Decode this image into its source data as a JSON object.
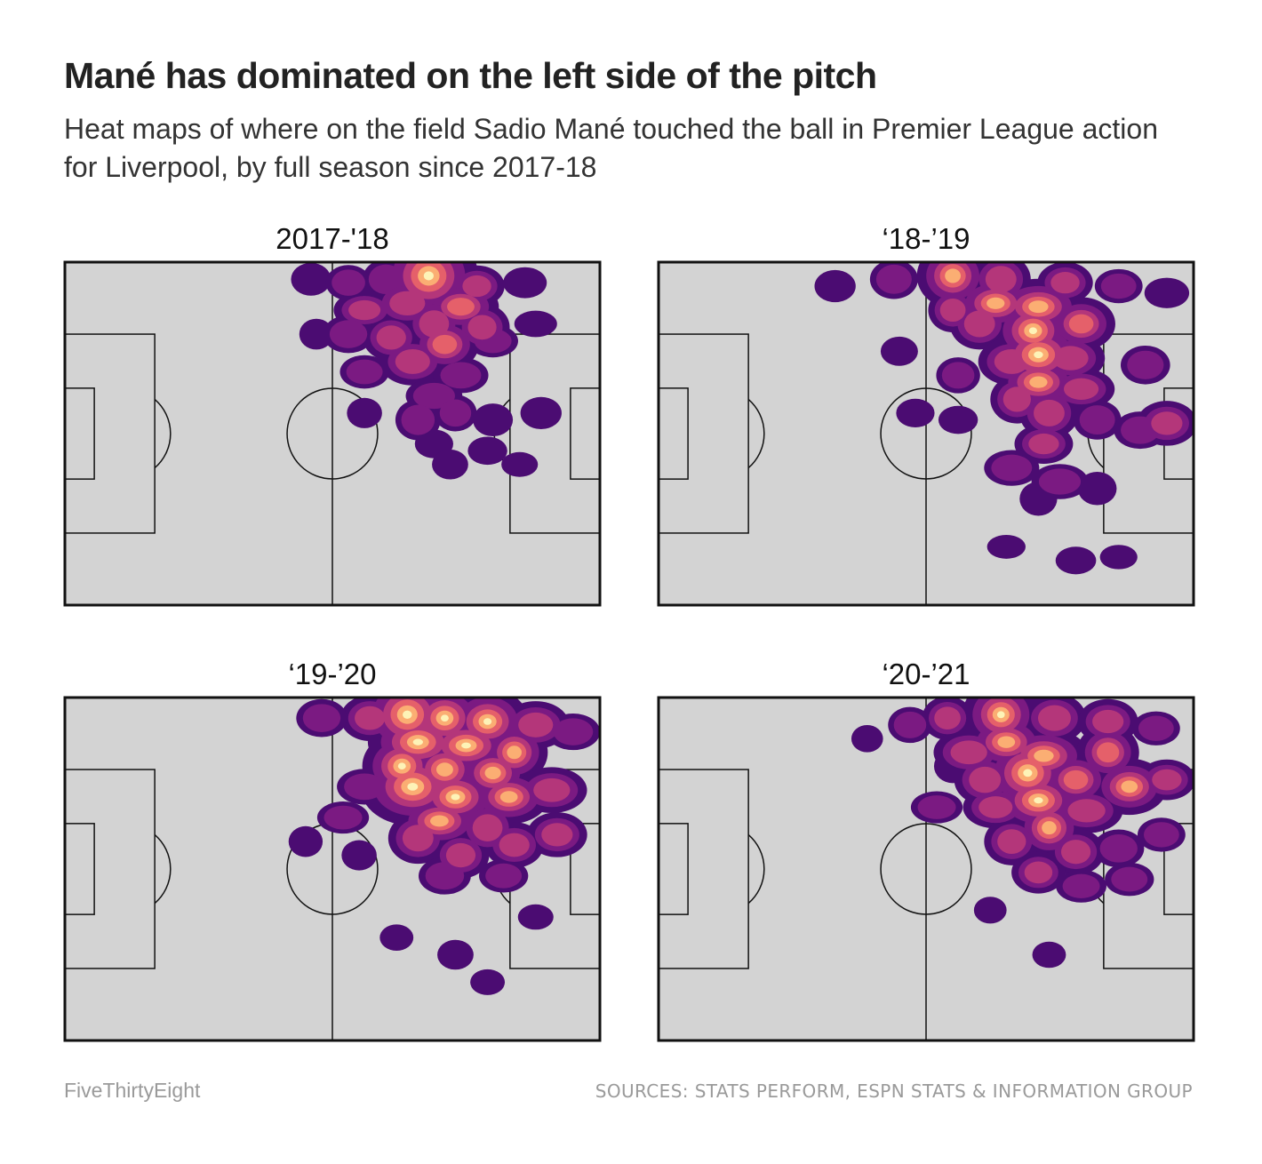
{
  "header": {
    "title": "Mané has dominated on the left side of the pitch",
    "subtitle": "Heat maps of where on the field Sadio Mané touched the ball in Premier League action for Liverpool, by full season since 2017-18"
  },
  "footer": {
    "brand": "FiveThirtyEight",
    "sources": "SOURCES: STATS PERFORM, ESPN STATS & INFORMATION GROUP"
  },
  "colors": {
    "pitch": "#d3d3d3",
    "lines": "#111111",
    "heat_low": "#4b0c72",
    "heat_mid_low": "#7b1a82",
    "heat_mid": "#b4367a",
    "heat_mid_high": "#e5606a",
    "heat_high": "#fbae73",
    "heat_peak": "#fdf3b7"
  },
  "chart_data": [
    {
      "type": "heatmap",
      "title": "2017-'18",
      "x_range": [
        0,
        100
      ],
      "y_range": [
        0,
        100
      ],
      "hotspots": [
        {
          "x": 68,
          "y": 4,
          "intensity": 1.0
        },
        {
          "x": 60,
          "y": 5,
          "intensity": 0.45
        },
        {
          "x": 46,
          "y": 5,
          "intensity": 0.35
        },
        {
          "x": 53,
          "y": 6,
          "intensity": 0.4
        },
        {
          "x": 77,
          "y": 7,
          "intensity": 0.5
        },
        {
          "x": 86,
          "y": 6,
          "intensity": 0.35
        },
        {
          "x": 64,
          "y": 12,
          "intensity": 0.6
        },
        {
          "x": 74,
          "y": 13,
          "intensity": 0.65
        },
        {
          "x": 56,
          "y": 14,
          "intensity": 0.5
        },
        {
          "x": 69,
          "y": 18,
          "intensity": 0.6
        },
        {
          "x": 78,
          "y": 19,
          "intensity": 0.55
        },
        {
          "x": 61,
          "y": 22,
          "intensity": 0.55
        },
        {
          "x": 71,
          "y": 24,
          "intensity": 0.65
        },
        {
          "x": 53,
          "y": 21,
          "intensity": 0.45
        },
        {
          "x": 65,
          "y": 29,
          "intensity": 0.6
        },
        {
          "x": 56,
          "y": 32,
          "intensity": 0.4
        },
        {
          "x": 74,
          "y": 33,
          "intensity": 0.45
        },
        {
          "x": 69,
          "y": 39,
          "intensity": 0.45
        },
        {
          "x": 66,
          "y": 46,
          "intensity": 0.45
        },
        {
          "x": 73,
          "y": 44,
          "intensity": 0.4
        },
        {
          "x": 80,
          "y": 46,
          "intensity": 0.35
        },
        {
          "x": 89,
          "y": 44,
          "intensity": 0.35
        },
        {
          "x": 69,
          "y": 53,
          "intensity": 0.3
        },
        {
          "x": 79,
          "y": 55,
          "intensity": 0.3
        },
        {
          "x": 85,
          "y": 59,
          "intensity": 0.25
        },
        {
          "x": 80,
          "y": 23,
          "intensity": 0.4
        },
        {
          "x": 88,
          "y": 18,
          "intensity": 0.3
        },
        {
          "x": 47,
          "y": 21,
          "intensity": 0.3
        },
        {
          "x": 56,
          "y": 44,
          "intensity": 0.3
        },
        {
          "x": 72,
          "y": 59,
          "intensity": 0.3
        }
      ]
    },
    {
      "type": "heatmap",
      "title": "‘18-’19",
      "x_range": [
        0,
        100
      ],
      "y_range": [
        0,
        100
      ],
      "hotspots": [
        {
          "x": 55,
          "y": 4,
          "intensity": 0.75
        },
        {
          "x": 64,
          "y": 5,
          "intensity": 0.6
        },
        {
          "x": 44,
          "y": 5,
          "intensity": 0.45
        },
        {
          "x": 33,
          "y": 7,
          "intensity": 0.35
        },
        {
          "x": 76,
          "y": 6,
          "intensity": 0.5
        },
        {
          "x": 86,
          "y": 7,
          "intensity": 0.4
        },
        {
          "x": 95,
          "y": 9,
          "intensity": 0.35
        },
        {
          "x": 63,
          "y": 12,
          "intensity": 0.7
        },
        {
          "x": 71,
          "y": 13,
          "intensity": 0.75
        },
        {
          "x": 55,
          "y": 14,
          "intensity": 0.5
        },
        {
          "x": 60,
          "y": 18,
          "intensity": 0.6
        },
        {
          "x": 70,
          "y": 20,
          "intensity": 0.8
        },
        {
          "x": 79,
          "y": 18,
          "intensity": 0.65
        },
        {
          "x": 71,
          "y": 27,
          "intensity": 0.85
        },
        {
          "x": 66,
          "y": 29,
          "intensity": 0.6
        },
        {
          "x": 77,
          "y": 28,
          "intensity": 0.6
        },
        {
          "x": 71,
          "y": 35,
          "intensity": 0.7
        },
        {
          "x": 79,
          "y": 37,
          "intensity": 0.55
        },
        {
          "x": 67,
          "y": 40,
          "intensity": 0.55
        },
        {
          "x": 73,
          "y": 44,
          "intensity": 0.6
        },
        {
          "x": 82,
          "y": 46,
          "intensity": 0.45
        },
        {
          "x": 91,
          "y": 30,
          "intensity": 0.45
        },
        {
          "x": 95,
          "y": 47,
          "intensity": 0.55
        },
        {
          "x": 90,
          "y": 49,
          "intensity": 0.45
        },
        {
          "x": 72,
          "y": 53,
          "intensity": 0.5
        },
        {
          "x": 66,
          "y": 60,
          "intensity": 0.45
        },
        {
          "x": 75,
          "y": 64,
          "intensity": 0.45
        },
        {
          "x": 71,
          "y": 69,
          "intensity": 0.35
        },
        {
          "x": 82,
          "y": 66,
          "intensity": 0.35
        },
        {
          "x": 56,
          "y": 33,
          "intensity": 0.4
        },
        {
          "x": 45,
          "y": 26,
          "intensity": 0.3
        },
        {
          "x": 48,
          "y": 44,
          "intensity": 0.3
        },
        {
          "x": 56,
          "y": 46,
          "intensity": 0.3
        },
        {
          "x": 78,
          "y": 87,
          "intensity": 0.3
        },
        {
          "x": 86,
          "y": 86,
          "intensity": 0.25
        },
        {
          "x": 65,
          "y": 83,
          "intensity": 0.25
        }
      ]
    },
    {
      "type": "heatmap",
      "title": "‘19-’20",
      "x_range": [
        0,
        100
      ],
      "y_range": [
        0,
        100
      ],
      "hotspots": [
        {
          "x": 64,
          "y": 5,
          "intensity": 0.95
        },
        {
          "x": 71,
          "y": 6,
          "intensity": 0.8
        },
        {
          "x": 79,
          "y": 7,
          "intensity": 0.8
        },
        {
          "x": 57,
          "y": 6,
          "intensity": 0.55
        },
        {
          "x": 48,
          "y": 6,
          "intensity": 0.45
        },
        {
          "x": 88,
          "y": 8,
          "intensity": 0.6
        },
        {
          "x": 95,
          "y": 10,
          "intensity": 0.45
        },
        {
          "x": 66,
          "y": 13,
          "intensity": 0.85
        },
        {
          "x": 75,
          "y": 14,
          "intensity": 0.8
        },
        {
          "x": 84,
          "y": 16,
          "intensity": 0.7
        },
        {
          "x": 63,
          "y": 20,
          "intensity": 0.8
        },
        {
          "x": 71,
          "y": 21,
          "intensity": 0.75
        },
        {
          "x": 80,
          "y": 22,
          "intensity": 0.7
        },
        {
          "x": 65,
          "y": 26,
          "intensity": 0.95
        },
        {
          "x": 73,
          "y": 29,
          "intensity": 0.8
        },
        {
          "x": 83,
          "y": 29,
          "intensity": 0.7
        },
        {
          "x": 91,
          "y": 27,
          "intensity": 0.6
        },
        {
          "x": 70,
          "y": 36,
          "intensity": 0.7
        },
        {
          "x": 79,
          "y": 38,
          "intensity": 0.6
        },
        {
          "x": 66,
          "y": 41,
          "intensity": 0.6
        },
        {
          "x": 74,
          "y": 46,
          "intensity": 0.55
        },
        {
          "x": 84,
          "y": 43,
          "intensity": 0.55
        },
        {
          "x": 92,
          "y": 40,
          "intensity": 0.55
        },
        {
          "x": 71,
          "y": 52,
          "intensity": 0.45
        },
        {
          "x": 82,
          "y": 52,
          "intensity": 0.4
        },
        {
          "x": 56,
          "y": 26,
          "intensity": 0.45
        },
        {
          "x": 52,
          "y": 35,
          "intensity": 0.4
        },
        {
          "x": 45,
          "y": 42,
          "intensity": 0.3
        },
        {
          "x": 55,
          "y": 46,
          "intensity": 0.3
        },
        {
          "x": 73,
          "y": 75,
          "intensity": 0.3
        },
        {
          "x": 62,
          "y": 70,
          "intensity": 0.25
        },
        {
          "x": 79,
          "y": 83,
          "intensity": 0.25
        },
        {
          "x": 88,
          "y": 64,
          "intensity": 0.25
        }
      ]
    },
    {
      "type": "heatmap",
      "title": "‘20-’21",
      "x_range": [
        0,
        100
      ],
      "y_range": [
        0,
        100
      ],
      "hotspots": [
        {
          "x": 64,
          "y": 5,
          "intensity": 0.8
        },
        {
          "x": 54,
          "y": 6,
          "intensity": 0.5
        },
        {
          "x": 47,
          "y": 8,
          "intensity": 0.4
        },
        {
          "x": 74,
          "y": 6,
          "intensity": 0.6
        },
        {
          "x": 84,
          "y": 7,
          "intensity": 0.55
        },
        {
          "x": 93,
          "y": 9,
          "intensity": 0.4
        },
        {
          "x": 65,
          "y": 13,
          "intensity": 0.7
        },
        {
          "x": 58,
          "y": 16,
          "intensity": 0.6
        },
        {
          "x": 72,
          "y": 17,
          "intensity": 0.75
        },
        {
          "x": 84,
          "y": 16,
          "intensity": 0.65
        },
        {
          "x": 69,
          "y": 22,
          "intensity": 0.9
        },
        {
          "x": 61,
          "y": 24,
          "intensity": 0.6
        },
        {
          "x": 78,
          "y": 24,
          "intensity": 0.65
        },
        {
          "x": 88,
          "y": 26,
          "intensity": 0.7
        },
        {
          "x": 95,
          "y": 24,
          "intensity": 0.5
        },
        {
          "x": 71,
          "y": 30,
          "intensity": 0.8
        },
        {
          "x": 63,
          "y": 32,
          "intensity": 0.55
        },
        {
          "x": 80,
          "y": 33,
          "intensity": 0.6
        },
        {
          "x": 73,
          "y": 38,
          "intensity": 0.7
        },
        {
          "x": 66,
          "y": 42,
          "intensity": 0.55
        },
        {
          "x": 78,
          "y": 45,
          "intensity": 0.55
        },
        {
          "x": 71,
          "y": 51,
          "intensity": 0.5
        },
        {
          "x": 86,
          "y": 44,
          "intensity": 0.45
        },
        {
          "x": 94,
          "y": 40,
          "intensity": 0.4
        },
        {
          "x": 88,
          "y": 53,
          "intensity": 0.4
        },
        {
          "x": 79,
          "y": 55,
          "intensity": 0.4
        },
        {
          "x": 52,
          "y": 32,
          "intensity": 0.4
        },
        {
          "x": 55,
          "y": 20,
          "intensity": 0.35
        },
        {
          "x": 39,
          "y": 12,
          "intensity": 0.25
        },
        {
          "x": 62,
          "y": 62,
          "intensity": 0.25
        },
        {
          "x": 73,
          "y": 75,
          "intensity": 0.25
        }
      ]
    }
  ]
}
